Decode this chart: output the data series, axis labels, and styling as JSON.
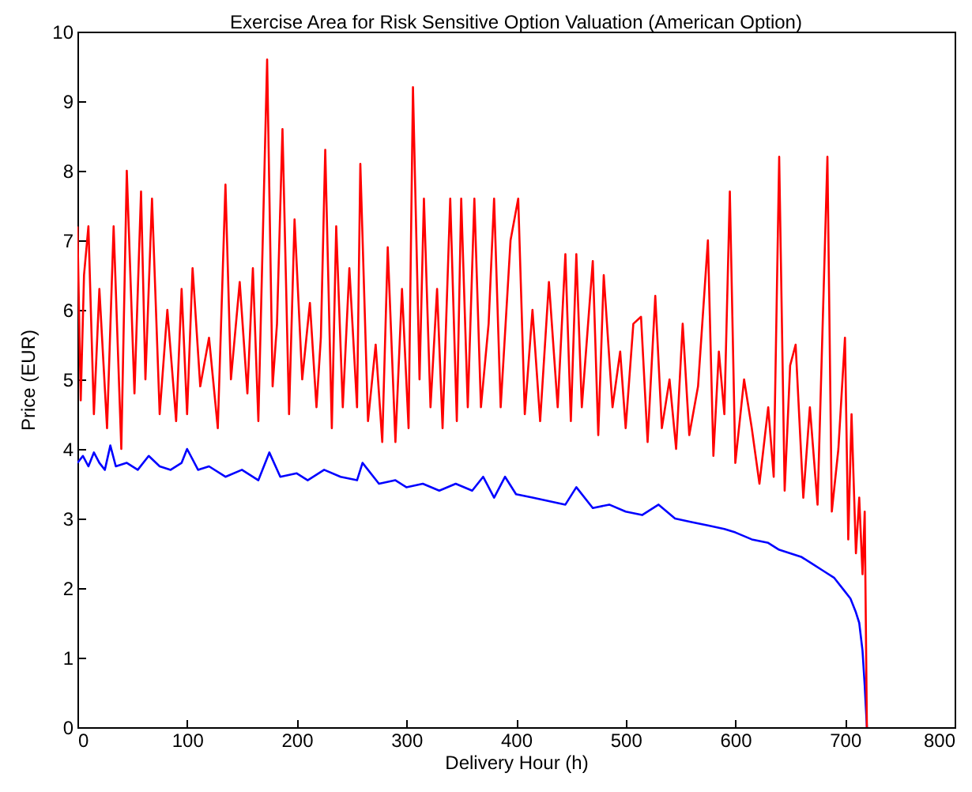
{
  "chart_data": {
    "type": "line",
    "title": "Exercise Area for Risk Sensitive Option Valuation (American Option)",
    "xlabel": "Delivery Hour (h)",
    "ylabel": "Price (EUR)",
    "xlim": [
      0,
      800
    ],
    "xticks": [
      0,
      100,
      200,
      300,
      400,
      500,
      600,
      700,
      800
    ],
    "ylim": [
      0,
      10
    ],
    "yticks": [
      0,
      1,
      2,
      3,
      4,
      5,
      6,
      7,
      8,
      9,
      10
    ],
    "grid": false,
    "marker": "none",
    "line_style": "solid",
    "series": [
      {
        "color": "#0000ff",
        "x": [
          0,
          5,
          10,
          15,
          20,
          25,
          30,
          35,
          45,
          55,
          65,
          75,
          85,
          95,
          100,
          110,
          120,
          135,
          150,
          165,
          175,
          185,
          200,
          210,
          225,
          240,
          255,
          260,
          275,
          290,
          300,
          315,
          330,
          345,
          360,
          370,
          380,
          390,
          400,
          415,
          430,
          445,
          455,
          470,
          485,
          500,
          515,
          530,
          545,
          560,
          575,
          590,
          600,
          615,
          630,
          640,
          650,
          660,
          670,
          680,
          690,
          700,
          705,
          710,
          713,
          716,
          718,
          719,
          720
        ],
        "values": [
          3.8,
          3.9,
          3.75,
          3.95,
          3.8,
          3.7,
          4.05,
          3.75,
          3.8,
          3.7,
          3.9,
          3.75,
          3.7,
          3.8,
          4.0,
          3.7,
          3.75,
          3.6,
          3.7,
          3.55,
          3.95,
          3.6,
          3.65,
          3.55,
          3.7,
          3.6,
          3.55,
          3.8,
          3.5,
          3.55,
          3.45,
          3.5,
          3.4,
          3.5,
          3.4,
          3.6,
          3.3,
          3.6,
          3.35,
          3.3,
          3.25,
          3.2,
          3.45,
          3.15,
          3.2,
          3.1,
          3.05,
          3.2,
          3.0,
          2.95,
          2.9,
          2.85,
          2.8,
          2.7,
          2.65,
          2.55,
          2.5,
          2.45,
          2.35,
          2.25,
          2.15,
          1.95,
          1.85,
          1.65,
          1.5,
          1.1,
          0.6,
          0.3,
          0.0
        ]
      },
      {
        "color": "#ff0000",
        "x": [
          0,
          3,
          6,
          10,
          15,
          20,
          27,
          33,
          40,
          45,
          52,
          58,
          62,
          68,
          75,
          82,
          90,
          95,
          100,
          105,
          112,
          120,
          128,
          135,
          140,
          148,
          155,
          160,
          165,
          173,
          178,
          182,
          187,
          193,
          198,
          205,
          212,
          218,
          222,
          226,
          232,
          236,
          242,
          248,
          255,
          258,
          265,
          272,
          278,
          283,
          290,
          296,
          302,
          306,
          312,
          316,
          322,
          328,
          333,
          340,
          346,
          350,
          356,
          362,
          368,
          375,
          380,
          386,
          395,
          402,
          408,
          415,
          422,
          430,
          438,
          445,
          450,
          455,
          460,
          470,
          475,
          480,
          488,
          495,
          500,
          507,
          514,
          520,
          527,
          533,
          540,
          546,
          552,
          558,
          566,
          575,
          580,
          585,
          590,
          595,
          600,
          608,
          615,
          622,
          630,
          635,
          640,
          645,
          650,
          655,
          662,
          668,
          675,
          684,
          688,
          694,
          700,
          703,
          706,
          710,
          713,
          716,
          718,
          720
        ],
        "values": [
          7.2,
          4.7,
          6.5,
          7.2,
          4.5,
          6.3,
          4.3,
          7.2,
          4.0,
          8.0,
          4.8,
          7.7,
          5.0,
          7.6,
          4.5,
          6.0,
          4.4,
          6.3,
          4.5,
          6.6,
          4.9,
          5.6,
          4.3,
          7.8,
          5.0,
          6.4,
          4.8,
          6.6,
          4.4,
          9.6,
          4.9,
          5.8,
          8.6,
          4.5,
          7.3,
          5.0,
          6.1,
          4.6,
          5.6,
          8.3,
          4.3,
          7.2,
          4.6,
          6.6,
          4.6,
          8.1,
          4.4,
          5.5,
          4.1,
          6.9,
          4.1,
          6.3,
          4.3,
          9.2,
          5.0,
          7.6,
          4.6,
          6.3,
          4.3,
          7.6,
          4.4,
          7.6,
          4.6,
          7.6,
          4.6,
          5.8,
          7.6,
          4.6,
          7.0,
          7.6,
          4.5,
          6.0,
          4.4,
          6.4,
          4.6,
          6.8,
          4.4,
          6.8,
          4.6,
          6.7,
          4.2,
          6.5,
          4.6,
          5.4,
          4.3,
          5.8,
          5.9,
          4.1,
          6.2,
          4.3,
          5.0,
          4.0,
          5.8,
          4.2,
          4.9,
          7.0,
          3.9,
          5.4,
          4.5,
          7.7,
          3.8,
          5.0,
          4.3,
          3.5,
          4.6,
          3.6,
          8.2,
          3.4,
          5.2,
          5.5,
          3.3,
          4.6,
          3.2,
          8.2,
          3.1,
          4.0,
          5.6,
          2.7,
          4.5,
          2.5,
          3.3,
          2.2,
          3.1,
          0.0
        ]
      }
    ]
  }
}
